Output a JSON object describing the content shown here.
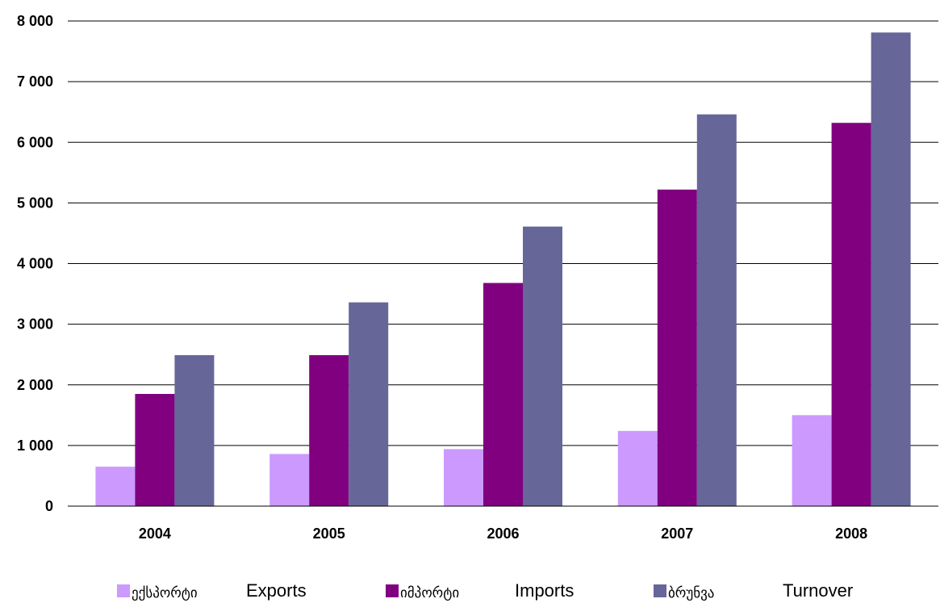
{
  "chart_data": {
    "type": "bar",
    "categories": [
      "2004",
      "2005",
      "2006",
      "2007",
      "2008"
    ],
    "series": [
      {
        "name": "ექსპორტი Exports",
        "label_geo": "ექსპორტი",
        "label_en": "Exports",
        "color": "#cc99ff",
        "values": [
          650,
          860,
          940,
          1240,
          1500
        ]
      },
      {
        "name": "იმპორტი Imports",
        "label_geo": "იმპორტი",
        "label_en": "Imports",
        "color": "#800080",
        "values": [
          1850,
          2490,
          3680,
          5220,
          6320
        ]
      },
      {
        "name": "ბრუნვა Turnover",
        "label_geo": "ბრუნვა",
        "label_en": "Turnover",
        "color": "#666699",
        "values": [
          2490,
          3360,
          4610,
          6460,
          7810
        ]
      }
    ],
    "ylim": [
      0,
      8000
    ],
    "yticks": [
      0,
      1000,
      2000,
      3000,
      4000,
      5000,
      6000,
      7000,
      8000
    ],
    "ytick_labels": [
      "0",
      "1 000",
      "2 000",
      "3 000",
      "4 000",
      "5 000",
      "6 000",
      "7 000",
      "8 000"
    ],
    "grid": true,
    "legend_position": "bottom"
  }
}
